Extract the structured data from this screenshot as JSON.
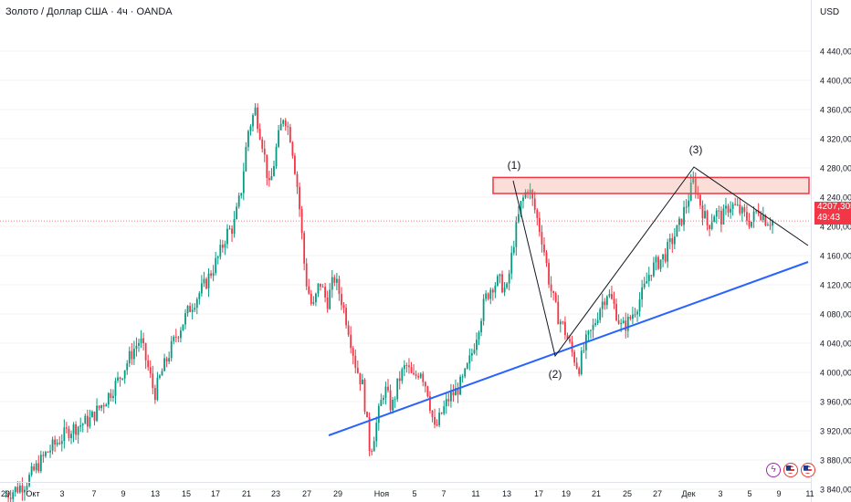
{
  "header": {
    "title": "Золото / Доллар США · 4ч · OANDA",
    "currency": "USD"
  },
  "price_badge": {
    "price": "4207,305",
    "countdown": "49:43"
  },
  "events": {
    "bolt_icon": "lightning-icon",
    "flag_icon": "us-flag-icon"
  },
  "colors": {
    "up": "#089981",
    "down": "#f23645",
    "support_line": "#2962ff",
    "resistance_zone": "#f23645",
    "wave_lines": "#131722",
    "price_line": "#f23645"
  },
  "chart_data": {
    "type": "candlestick",
    "title": "Золото / Доллар США · 4ч · OANDA",
    "ylabel": "USD",
    "ylim": [
      3820,
      4470
    ],
    "y_ticks": [
      "4 440,000",
      "4 400,000",
      "4 360,000",
      "4 320,000",
      "4 280,000",
      "4 240,000",
      "4 200,000",
      "4 160,000",
      "4 120,000",
      "4 080,000",
      "4 040,000",
      "4 000,000",
      "3 960,000",
      "3 920,000",
      "3 880,000",
      "3 840,000"
    ],
    "y_tick_values": [
      4440,
      4400,
      4360,
      4320,
      4280,
      4240,
      4200,
      4160,
      4120,
      4080,
      4040,
      4000,
      3960,
      3920,
      3880,
      3840
    ],
    "x_ticks": [
      "29",
      "Окт",
      "3",
      "7",
      "9",
      "13",
      "15",
      "17",
      "21",
      "23",
      "27",
      "29",
      "Ноя",
      "5",
      "7",
      "11",
      "13",
      "17",
      "19",
      "21",
      "25",
      "27",
      "Дек",
      "3",
      "5",
      "9",
      "11"
    ],
    "price_path": [
      [
        0,
        3830
      ],
      [
        3,
        3848
      ],
      [
        6,
        3890
      ],
      [
        9,
        3920
      ],
      [
        12,
        3935
      ],
      [
        14,
        3960
      ],
      [
        16,
        3990
      ],
      [
        18,
        4030
      ],
      [
        19,
        4045
      ],
      [
        20,
        4010
      ],
      [
        21,
        3970
      ],
      [
        22,
        4000
      ],
      [
        24,
        4050
      ],
      [
        26,
        4090
      ],
      [
        28,
        4120
      ],
      [
        30,
        4160
      ],
      [
        31,
        4190
      ],
      [
        32,
        4200
      ],
      [
        33,
        4245
      ],
      [
        34,
        4330
      ],
      [
        35,
        4360
      ],
      [
        36,
        4315
      ],
      [
        37,
        4250
      ],
      [
        38,
        4310
      ],
      [
        39,
        4355
      ],
      [
        40,
        4320
      ],
      [
        41,
        4245
      ],
      [
        42,
        4130
      ],
      [
        43,
        4085
      ],
      [
        44,
        4125
      ],
      [
        45,
        4095
      ],
      [
        46,
        4130
      ],
      [
        47,
        4100
      ],
      [
        48,
        4060
      ],
      [
        49,
        4010
      ],
      [
        50,
        3980
      ],
      [
        51,
        3890
      ],
      [
        52,
        3935
      ],
      [
        53,
        3980
      ],
      [
        54,
        3950
      ],
      [
        55,
        3990
      ],
      [
        56,
        4010
      ],
      [
        57,
        3990
      ],
      [
        58,
        4005
      ],
      [
        59,
        3975
      ],
      [
        60,
        3920
      ],
      [
        61,
        3945
      ],
      [
        62,
        3965
      ],
      [
        63,
        3975
      ],
      [
        64,
        3990
      ],
      [
        65,
        4020
      ],
      [
        66,
        4060
      ],
      [
        67,
        4100
      ],
      [
        68,
        4120
      ],
      [
        69,
        4125
      ],
      [
        70,
        4110
      ],
      [
        71,
        4180
      ],
      [
        72,
        4230
      ],
      [
        73,
        4255
      ],
      [
        74,
        4220
      ],
      [
        75,
        4180
      ],
      [
        76,
        4120
      ],
      [
        77,
        4080
      ],
      [
        78,
        4060
      ],
      [
        79,
        4030
      ],
      [
        80,
        4005
      ],
      [
        81,
        4040
      ],
      [
        82,
        4060
      ],
      [
        83,
        4090
      ],
      [
        84,
        4110
      ],
      [
        85,
        4090
      ],
      [
        86,
        4060
      ],
      [
        87,
        4070
      ],
      [
        88,
        4090
      ],
      [
        89,
        4110
      ],
      [
        90,
        4140
      ],
      [
        91,
        4150
      ],
      [
        92,
        4160
      ],
      [
        93,
        4180
      ],
      [
        94,
        4200
      ],
      [
        95,
        4230
      ],
      [
        96,
        4262
      ],
      [
        97,
        4230
      ],
      [
        98,
        4200
      ],
      [
        99,
        4220
      ],
      [
        100,
        4210
      ],
      [
        101,
        4230
      ],
      [
        102,
        4225
      ],
      [
        103,
        4215
      ],
      [
        104,
        4205
      ],
      [
        105,
        4225
      ],
      [
        106,
        4210
      ],
      [
        107,
        4207
      ]
    ],
    "current_price": 4207.305,
    "resistance_zone": [
      4250,
      4262
    ],
    "support_line": {
      "from": [
        3888,
        0
      ],
      "to": [
        4128,
        1
      ]
    },
    "annotations": [
      "(1)",
      "(2)",
      "(3)"
    ]
  }
}
